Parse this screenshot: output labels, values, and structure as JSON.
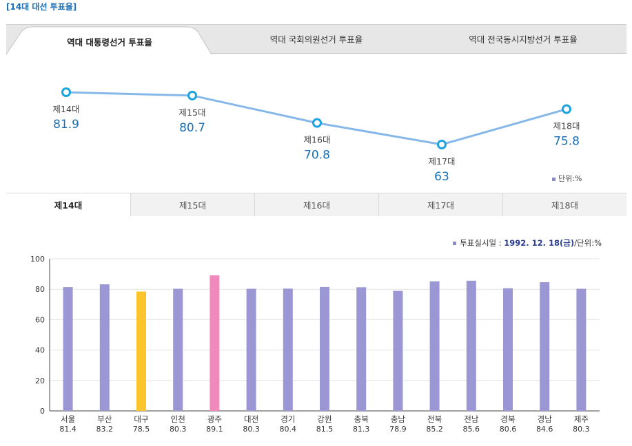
{
  "heading": "[14대 대선 투표율]",
  "top_tabs": {
    "presidential": "역대 대통령선거 투표율",
    "national_assembly": "역대 국회의원선거 투표율",
    "local": "역대 전국동시지방선거 투표율"
  },
  "unit_note": "단위:%",
  "election_tabs": [
    "제14대",
    "제15대",
    "제16대",
    "제17대",
    "제18대"
  ],
  "bar_info": {
    "prefix": "투표실시일 : ",
    "date": "1992. 12. 18(금)",
    "suffix": "/단위:%"
  },
  "colors": {
    "line": "#85b8e8",
    "marker": "#1ba3e0",
    "value_text": "#1a6fb4",
    "bar_default": "#9a97d4",
    "bar_daegu": "#fcc52d",
    "bar_gwangju": "#f289bd"
  },
  "chart_data": [
    {
      "type": "line",
      "categories": [
        "제14대",
        "제15대",
        "제16대",
        "제17대",
        "제18대"
      ],
      "values": [
        81.9,
        80.7,
        70.8,
        63,
        75.8
      ]
    },
    {
      "type": "bar",
      "categories": [
        "서울",
        "부산",
        "대구",
        "인천",
        "광주",
        "대전",
        "경기",
        "강원",
        "충북",
        "충남",
        "전북",
        "전남",
        "경북",
        "경남",
        "제주"
      ],
      "values": [
        81.4,
        83.2,
        78.5,
        80.3,
        89.1,
        80.3,
        80.4,
        81.5,
        81.3,
        78.9,
        85.2,
        85.6,
        80.6,
        84.6,
        80.3
      ],
      "ylim": [
        0,
        100
      ],
      "yticks": [
        0,
        20,
        40,
        60,
        80,
        100
      ],
      "grid": true
    }
  ]
}
